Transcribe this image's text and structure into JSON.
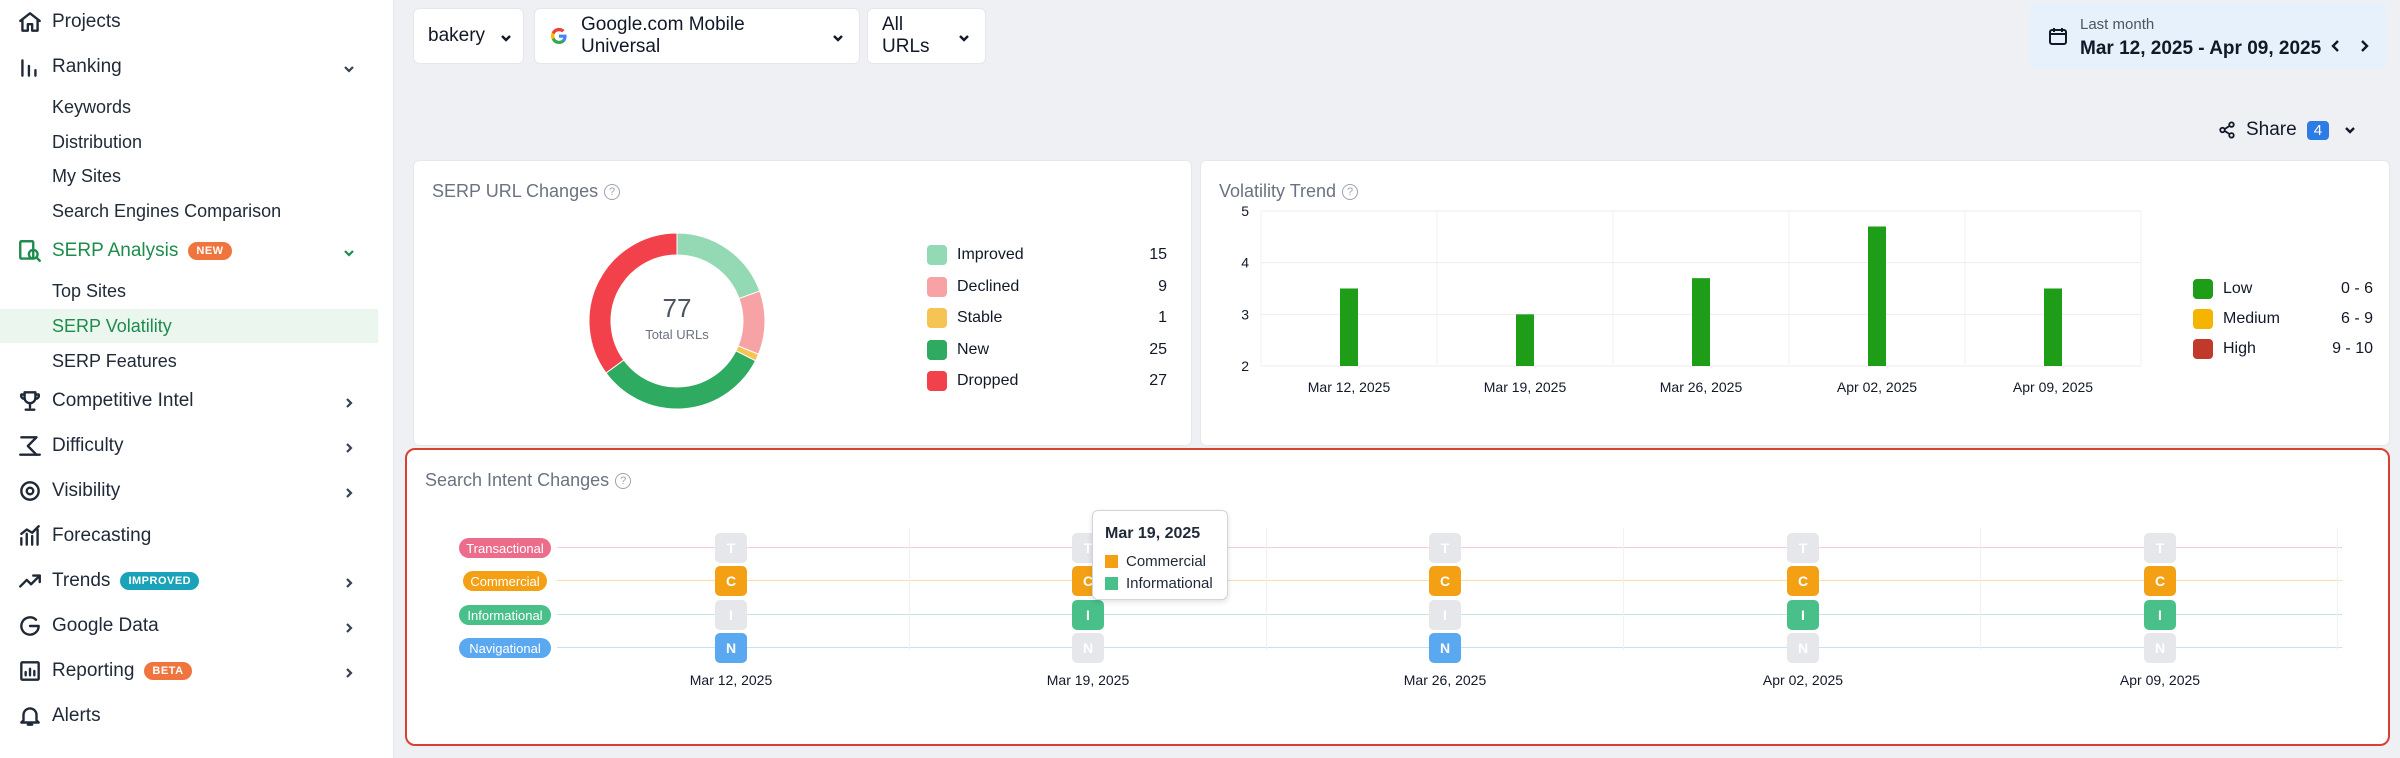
{
  "sidebar": {
    "items": [
      {
        "label": "Projects"
      },
      {
        "label": "Ranking"
      },
      {
        "label": "SERP Analysis",
        "badge": "NEW",
        "badge_color": "#f0743e"
      },
      {
        "label": "Competitive Intel"
      },
      {
        "label": "Difficulty"
      },
      {
        "label": "Visibility"
      },
      {
        "label": "Forecasting"
      },
      {
        "label": "Trends",
        "badge": "IMPROVED",
        "badge_color": "#1aa3b8"
      },
      {
        "label": "Google Data"
      },
      {
        "label": "Reporting",
        "badge": "BETA",
        "badge_color": "#f0743e"
      },
      {
        "label": "Alerts"
      }
    ],
    "ranking_sub": [
      "Keywords",
      "Distribution",
      "My Sites",
      "Search Engines Comparison"
    ],
    "serp_sub": [
      "Top Sites",
      "SERP Volatility",
      "SERP Features"
    ]
  },
  "header": {
    "project": "bakery",
    "engine": "Google.com Mobile Universal",
    "urls": "All URLs",
    "date_label": "Last month",
    "date_range": "Mar 12, 2025 - Apr 09, 2025",
    "share_label": "Share",
    "share_count": "4"
  },
  "serp_url_changes": {
    "title": "SERP URL Changes",
    "total": "77",
    "total_label": "Total URLs",
    "legend": [
      {
        "label": "Improved",
        "value": "15",
        "color": "#93d9b4"
      },
      {
        "label": "Declined",
        "value": "9",
        "color": "#f7a3a5"
      },
      {
        "label": "Stable",
        "value": "1",
        "color": "#f6c453"
      },
      {
        "label": "New",
        "value": "25",
        "color": "#2eaa61"
      },
      {
        "label": "Dropped",
        "value": "27",
        "color": "#f2414a"
      }
    ]
  },
  "volatility": {
    "title": "Volatility Trend",
    "legend": [
      {
        "label": "Low",
        "range": "0 - 6",
        "color": "#1e9e18"
      },
      {
        "label": "Medium",
        "range": "6 - 9",
        "color": "#f5b400"
      },
      {
        "label": "High",
        "range": "9 - 10",
        "color": "#c0392b"
      }
    ]
  },
  "chart_data": {
    "type": "bar",
    "categories": [
      "Mar 12, 2025",
      "Mar 19, 2025",
      "Mar 26, 2025",
      "Apr 02, 2025",
      "Apr 09, 2025"
    ],
    "values": [
      3.5,
      3.0,
      3.7,
      4.7,
      3.5
    ],
    "ylim": [
      2,
      5
    ],
    "yticks": [
      "2",
      "3",
      "4",
      "5"
    ],
    "grid": true,
    "legend_position": "right"
  },
  "intent": {
    "title": "Search Intent Changes",
    "rows": [
      {
        "label": "Transactional",
        "letter": "T",
        "color": "#ec6d8b"
      },
      {
        "label": "Commercial",
        "letter": "C",
        "color": "#f4a015"
      },
      {
        "label": "Informational",
        "letter": "I",
        "color": "#49c08a"
      },
      {
        "label": "Navigational",
        "letter": "N",
        "color": "#5aa8ef"
      }
    ],
    "dates": [
      "Mar 12, 2025",
      "Mar 19, 2025",
      "Mar 26, 2025",
      "Apr 02, 2025",
      "Apr 09, 2025"
    ],
    "active": [
      [
        false,
        true,
        false,
        true
      ],
      [
        false,
        true,
        true,
        false
      ],
      [
        false,
        true,
        false,
        true
      ],
      [
        false,
        true,
        true,
        false
      ],
      [
        false,
        true,
        true,
        false
      ]
    ],
    "tooltip": {
      "date": "Mar 19, 2025",
      "items": [
        "Commercial",
        "Informational"
      ]
    }
  }
}
